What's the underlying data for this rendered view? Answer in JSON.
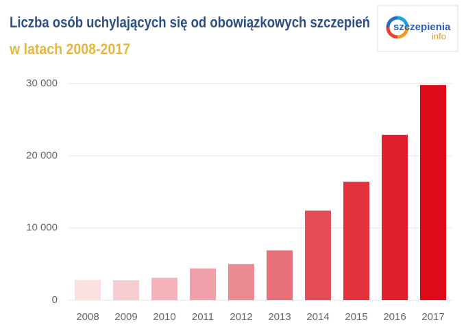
{
  "chart_data": {
    "type": "bar",
    "title": "Liczba osób uchylających się od obowiązkowych szczepień",
    "subtitle": "w latach 2008-2017",
    "logo": {
      "main": "szczepienia",
      "sub": "info"
    },
    "categories": [
      "2008",
      "2009",
      "2010",
      "2011",
      "2012",
      "2013",
      "2014",
      "2015",
      "2016",
      "2017"
    ],
    "values": [
      2800,
      2750,
      3100,
      4400,
      5000,
      6900,
      12400,
      16400,
      22900,
      29800
    ],
    "colors": [
      "#fbe0e2",
      "#f8cdd2",
      "#f4b3ba",
      "#f0a0a8",
      "#ec8a93",
      "#e8707b",
      "#e44d58",
      "#e2323e",
      "#df1f2b",
      "#dd0a17"
    ],
    "ylim": [
      0,
      30000
    ],
    "yticks": [
      0,
      {
        "value": 10000,
        "label": "10 000"
      },
      {
        "value": 20000,
        "label": "20 000"
      },
      {
        "value": 30000,
        "label": "30 000"
      }
    ],
    "grid": true
  }
}
